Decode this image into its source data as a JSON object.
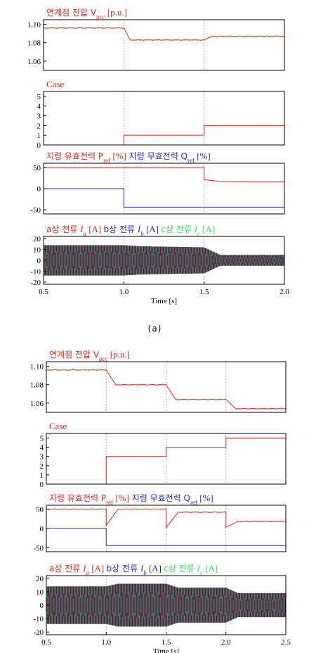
{
  "colors": {
    "red": "#e8241f",
    "blue": "#2a2ad6",
    "green": "#33e05a",
    "black": "#000000",
    "grid": "#9a9a9a"
  },
  "captions": {
    "a": "(a)",
    "b": ""
  },
  "chart_data": [
    {
      "id": "a-vpcc",
      "type": "line",
      "title_parts": [
        {
          "text": "연계점 전압 V",
          "color": "#e8241f"
        },
        {
          "text": "pcc",
          "color": "#e8241f",
          "sub": true
        },
        {
          "text": " [p.u.]",
          "color": "#e8241f"
        }
      ],
      "ylim": [
        1.05,
        1.105
      ],
      "yticks": [
        "1.10",
        "1.08",
        "1.06"
      ],
      "ytick_values": [
        1.1,
        1.08,
        1.06
      ],
      "xlim": [
        0.5,
        2.0
      ],
      "vlines": [
        1.0,
        1.5
      ],
      "series": [
        {
          "color": "#e8241f",
          "x": [
            0.5,
            1.0,
            1.04,
            1.5,
            1.55,
            2.0
          ],
          "y": [
            1.096,
            1.096,
            1.083,
            1.083,
            1.087,
            1.087
          ],
          "ripple": 0.0006
        }
      ]
    },
    {
      "id": "a-case",
      "type": "line",
      "title_parts": [
        {
          "text": "Case",
          "color": "#e8241f"
        }
      ],
      "ylim": [
        0,
        5.5
      ],
      "yticks": [
        "5",
        "4",
        "3",
        "2",
        "1",
        "0"
      ],
      "ytick_values": [
        5,
        4,
        3,
        2,
        1,
        0
      ],
      "xlim": [
        0.5,
        2.0
      ],
      "vlines": [
        1.0,
        1.5
      ],
      "series": [
        {
          "color": "#e8241f",
          "x": [
            0.5,
            1.0,
            1.0,
            1.5,
            1.5,
            2.0
          ],
          "y": [
            0,
            0,
            1,
            1,
            2,
            2
          ],
          "ripple": 0
        }
      ]
    },
    {
      "id": "a-pq",
      "type": "line",
      "title_parts": [
        {
          "text": "지령 유효전력 P",
          "color": "#e8241f"
        },
        {
          "text": "ref",
          "color": "#e8241f",
          "sub": true
        },
        {
          "text": " [%]",
          "color": "#e8241f"
        },
        {
          "text": "    지령 무효전력 Q",
          "color": "#2a2ad6"
        },
        {
          "text": "ref",
          "color": "#2a2ad6",
          "sub": true
        },
        {
          "text": " [%]",
          "color": "#2a2ad6"
        }
      ],
      "ylim": [
        -60,
        60
      ],
      "yticks": [
        "50",
        "0",
        "-50"
      ],
      "ytick_values": [
        50,
        0,
        -50
      ],
      "xlim": [
        0.5,
        2.0
      ],
      "vlines": [
        1.0,
        1.5
      ],
      "series": [
        {
          "color": "#e8241f",
          "x": [
            0.5,
            1.5,
            1.5,
            1.6,
            2.0
          ],
          "y": [
            50,
            50,
            21,
            17,
            16
          ],
          "ripple": 0.8
        },
        {
          "color": "#2a2ad6",
          "x": [
            0.5,
            1.0,
            1.0,
            1.5,
            1.5,
            2.0
          ],
          "y": [
            0,
            0,
            -44,
            -44,
            -44,
            -44
          ],
          "ripple": 0
        }
      ]
    },
    {
      "id": "a-current",
      "type": "area",
      "title_parts": [
        {
          "text": "a상 전류 ",
          "color": "#e8241f"
        },
        {
          "text": "I",
          "color": "#e8241f",
          "italic": true
        },
        {
          "text": "a",
          "color": "#e8241f",
          "sub": true,
          "italic": true
        },
        {
          "text": " [A]   ",
          "color": "#e8241f"
        },
        {
          "text": "b상 전류 ",
          "color": "#2a2ad6"
        },
        {
          "text": "I",
          "color": "#2a2ad6",
          "italic": true
        },
        {
          "text": "b",
          "color": "#2a2ad6",
          "sub": true,
          "italic": true
        },
        {
          "text": " [A]   ",
          "color": "#2a2ad6"
        },
        {
          "text": "c상 전류 ",
          "color": "#33e05a"
        },
        {
          "text": "I",
          "color": "#33e05a",
          "italic": true
        },
        {
          "text": "c",
          "color": "#33e05a",
          "sub": true,
          "italic": true
        },
        {
          "text": " [A]",
          "color": "#33e05a"
        }
      ],
      "ylim": [
        -22,
        22
      ],
      "yticks": [
        "20",
        "10",
        "0",
        "-10",
        "-20"
      ],
      "ytick_values": [
        20,
        10,
        0,
        -10,
        -20
      ],
      "xlim": [
        0.5,
        2.0
      ],
      "xticks": [
        "0.5",
        "1.0",
        "1.5",
        "2.0"
      ],
      "xtick_values": [
        0.5,
        1.0,
        1.5,
        2.0
      ],
      "xlabel": "Time [s]",
      "vlines": [
        1.0,
        1.5
      ],
      "envelope": {
        "x": [
          0.5,
          1.0,
          1.1,
          1.5,
          1.6,
          2.0
        ],
        "amp": [
          14,
          14,
          13,
          12,
          5,
          5
        ]
      }
    },
    {
      "id": "b-vpcc",
      "type": "line",
      "title_parts": [
        {
          "text": "연계점 전압 V",
          "color": "#e8241f"
        },
        {
          "text": "pcc",
          "color": "#e8241f",
          "sub": true
        },
        {
          "text": " [p.u.]",
          "color": "#e8241f"
        }
      ],
      "ylim": [
        1.05,
        1.105
      ],
      "yticks": [
        "1.10",
        "1.08",
        "1.06"
      ],
      "ytick_values": [
        1.1,
        1.08,
        1.06
      ],
      "xlim": [
        0.5,
        2.5
      ],
      "vlines": [
        1.0,
        1.5,
        2.0
      ],
      "series": [
        {
          "color": "#e8241f",
          "x": [
            0.5,
            1.0,
            1.08,
            1.5,
            1.58,
            2.0,
            2.08,
            2.5
          ],
          "y": [
            1.096,
            1.096,
            1.08,
            1.08,
            1.064,
            1.064,
            1.054,
            1.054
          ],
          "ripple": 0.0006
        }
      ]
    },
    {
      "id": "b-case",
      "type": "line",
      "title_parts": [
        {
          "text": "Case",
          "color": "#e8241f"
        }
      ],
      "ylim": [
        0,
        5.5
      ],
      "yticks": [
        "5",
        "4",
        "3",
        "2",
        "1",
        "0"
      ],
      "ytick_values": [
        5,
        4,
        3,
        2,
        1,
        0
      ],
      "xlim": [
        0.5,
        2.5
      ],
      "vlines": [
        1.0,
        1.5,
        2.0
      ],
      "series": [
        {
          "color": "#e8241f",
          "x": [
            0.5,
            1.0,
            1.0,
            1.5,
            1.5,
            2.0,
            2.0,
            2.5
          ],
          "y": [
            0,
            0,
            3,
            3,
            4,
            4,
            5,
            5
          ],
          "ripple": 0
        }
      ]
    },
    {
      "id": "b-pq",
      "type": "line",
      "title_parts": [
        {
          "text": "지령 유효전력 P",
          "color": "#e8241f"
        },
        {
          "text": "ref",
          "color": "#e8241f",
          "sub": true
        },
        {
          "text": " [%]",
          "color": "#e8241f"
        },
        {
          "text": "    지령 무효전력 Q",
          "color": "#2a2ad6"
        },
        {
          "text": "ref",
          "color": "#2a2ad6",
          "sub": true
        },
        {
          "text": " [%]",
          "color": "#2a2ad6"
        }
      ],
      "ylim": [
        -60,
        60
      ],
      "yticks": [
        "50",
        "0",
        "-50"
      ],
      "ytick_values": [
        50,
        0,
        -50
      ],
      "xlim": [
        0.5,
        2.5
      ],
      "vlines": [
        1.0,
        1.5,
        2.0
      ],
      "series": [
        {
          "color": "#e8241f",
          "x": [
            0.5,
            1.0,
            1.0,
            1.1,
            1.5,
            1.5,
            1.6,
            2.0,
            2.0,
            2.1,
            2.5
          ],
          "y": [
            50,
            50,
            8,
            50,
            50,
            2,
            42,
            42,
            3,
            18,
            18
          ],
          "ripple": 1.2
        },
        {
          "color": "#2a2ad6",
          "x": [
            0.5,
            1.0,
            1.0,
            2.5
          ],
          "y": [
            0,
            0,
            -44,
            -44
          ],
          "ripple": 0
        }
      ]
    },
    {
      "id": "b-current",
      "type": "area",
      "title_parts": [
        {
          "text": "a상 전류 ",
          "color": "#e8241f"
        },
        {
          "text": "I",
          "color": "#e8241f",
          "italic": true
        },
        {
          "text": "a",
          "color": "#e8241f",
          "sub": true,
          "italic": true
        },
        {
          "text": " [A]   ",
          "color": "#e8241f"
        },
        {
          "text": "b상 전류 ",
          "color": "#2a2ad6"
        },
        {
          "text": "I",
          "color": "#2a2ad6",
          "italic": true
        },
        {
          "text": "b",
          "color": "#2a2ad6",
          "sub": true,
          "italic": true
        },
        {
          "text": " [A]   ",
          "color": "#2a2ad6"
        },
        {
          "text": "c상 전류 ",
          "color": "#33e05a"
        },
        {
          "text": "I",
          "color": "#33e05a",
          "italic": true
        },
        {
          "text": "c",
          "color": "#33e05a",
          "sub": true,
          "italic": true
        },
        {
          "text": " [A]",
          "color": "#33e05a"
        }
      ],
      "ylim": [
        -22,
        22
      ],
      "yticks": [
        "20",
        "10",
        "0",
        "-10",
        "-20"
      ],
      "ytick_values": [
        20,
        10,
        0,
        -10,
        -20
      ],
      "xlim": [
        0.5,
        2.5
      ],
      "xticks": [
        "0.5",
        "1.0",
        "1.5",
        "2.0",
        "2.5"
      ],
      "xtick_values": [
        0.5,
        1.0,
        1.5,
        2.0,
        2.5
      ],
      "xlabel": "Time [s]",
      "vlines": [
        1.0,
        1.5,
        2.0
      ],
      "envelope": {
        "x": [
          0.5,
          1.0,
          1.1,
          1.5,
          1.6,
          2.0,
          2.1,
          2.5
        ],
        "amp": [
          14,
          14,
          16,
          16,
          13,
          13,
          9,
          9
        ]
      }
    }
  ]
}
